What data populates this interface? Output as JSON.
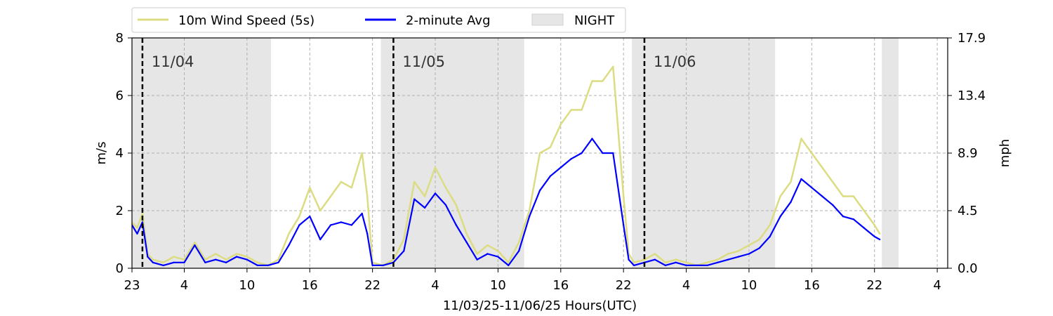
{
  "chart_data": {
    "type": "line",
    "xlabel": "11/03/25-11/06/25  Hours(UTC)",
    "ylabel_left": "m/s",
    "ylabel_right": "mph",
    "x_range_hours": [
      0,
      78
    ],
    "x_ticks": [
      {
        "h": 0,
        "label": "23"
      },
      {
        "h": 5,
        "label": "4"
      },
      {
        "h": 11,
        "label": "10"
      },
      {
        "h": 17,
        "label": "16"
      },
      {
        "h": 23,
        "label": "22"
      },
      {
        "h": 29,
        "label": "4"
      },
      {
        "h": 35,
        "label": "10"
      },
      {
        "h": 41,
        "label": "16"
      },
      {
        "h": 47,
        "label": "22"
      },
      {
        "h": 53,
        "label": "4"
      },
      {
        "h": 59,
        "label": "10"
      },
      {
        "h": 65,
        "label": "16"
      },
      {
        "h": 71,
        "label": "22"
      },
      {
        "h": 77,
        "label": "4"
      }
    ],
    "ylim_left": [
      0,
      8
    ],
    "y_ticks_left": [
      "0",
      "2",
      "4",
      "6",
      "8"
    ],
    "y_ticks_right": [
      "0.0",
      "4.5",
      "8.9",
      "13.4",
      "17.9"
    ],
    "grid": true,
    "legend_position": "top-left, above plot",
    "legend": [
      {
        "label": "10m Wind Speed (5s)",
        "color": "#dcdc82"
      },
      {
        "label": "2-minute Avg",
        "color": "#0000ff"
      },
      {
        "label": "NIGHT",
        "color": "#e6e6e6"
      }
    ],
    "night_periods": [
      [
        0,
        13.3
      ],
      [
        23.8,
        37.5
      ],
      [
        47.8,
        61.5
      ],
      [
        71.7,
        73.3
      ]
    ],
    "day_markers": [
      {
        "h": 1,
        "label": "11/04"
      },
      {
        "h": 25,
        "label": "11/05"
      },
      {
        "h": 49,
        "label": "11/06"
      }
    ],
    "series": [
      {
        "name": "10m Wind Speed (5s)",
        "color": "#dcdc82",
        "x": [
          0,
          0.5,
          1,
          1.5,
          2,
          3,
          4,
          5,
          6,
          7,
          8,
          9,
          10,
          11,
          12,
          13,
          14,
          15,
          16,
          17,
          18,
          19,
          20,
          21,
          22,
          22.5,
          23,
          24,
          25,
          26,
          27,
          28,
          29,
          30,
          31,
          32,
          33,
          34,
          35,
          36,
          37,
          38,
          39,
          40,
          41,
          42,
          43,
          44,
          45,
          46,
          47,
          47.5,
          48,
          49,
          50,
          51,
          52,
          53,
          54,
          55,
          56,
          57,
          58,
          59,
          60,
          61,
          62,
          63,
          64,
          65,
          66,
          67,
          68,
          69,
          70,
          71,
          71.5
        ],
        "values": [
          1.6,
          1.4,
          1.9,
          0.5,
          0.3,
          0.2,
          0.4,
          0.3,
          0.9,
          0.3,
          0.5,
          0.3,
          0.5,
          0.4,
          0.2,
          0.1,
          0.3,
          1.2,
          1.8,
          2.8,
          2.0,
          2.5,
          3.0,
          2.8,
          4.0,
          2.5,
          0.2,
          0.1,
          0.3,
          1.0,
          3.0,
          2.5,
          3.5,
          2.8,
          2.2,
          1.2,
          0.5,
          0.8,
          0.6,
          0.2,
          0.9,
          2.0,
          4.0,
          4.2,
          5.0,
          5.5,
          5.5,
          6.5,
          6.5,
          7.0,
          2.5,
          0.5,
          0.2,
          0.3,
          0.5,
          0.2,
          0.3,
          0.2,
          0.1,
          0.2,
          0.3,
          0.5,
          0.6,
          0.8,
          1.0,
          1.5,
          2.5,
          3.0,
          4.5,
          4.0,
          3.5,
          3.0,
          2.5,
          2.5,
          2.0,
          1.5,
          1.2
        ]
      },
      {
        "name": "2-minute Avg",
        "color": "#0000ff",
        "x": [
          0,
          0.5,
          1,
          1.5,
          2,
          3,
          4,
          5,
          6,
          7,
          8,
          9,
          10,
          11,
          12,
          13,
          14,
          15,
          16,
          17,
          18,
          19,
          20,
          21,
          22,
          22.5,
          23,
          24,
          25,
          26,
          27,
          28,
          29,
          30,
          31,
          32,
          33,
          34,
          35,
          36,
          37,
          38,
          39,
          40,
          41,
          42,
          43,
          44,
          45,
          46,
          47,
          47.5,
          48,
          49,
          50,
          51,
          52,
          53,
          54,
          55,
          56,
          57,
          58,
          59,
          60,
          61,
          62,
          63,
          64,
          65,
          66,
          67,
          68,
          69,
          70,
          71,
          71.5
        ],
        "values": [
          1.5,
          1.2,
          1.6,
          0.4,
          0.2,
          0.1,
          0.2,
          0.2,
          0.8,
          0.2,
          0.3,
          0.2,
          0.4,
          0.3,
          0.1,
          0.1,
          0.2,
          0.8,
          1.5,
          1.8,
          1.0,
          1.5,
          1.6,
          1.5,
          1.9,
          1.2,
          0.1,
          0.1,
          0.2,
          0.6,
          2.4,
          2.1,
          2.6,
          2.2,
          1.5,
          0.9,
          0.3,
          0.5,
          0.4,
          0.1,
          0.6,
          1.8,
          2.7,
          3.2,
          3.5,
          3.8,
          4.0,
          4.5,
          4.0,
          4.0,
          1.5,
          0.3,
          0.1,
          0.2,
          0.3,
          0.1,
          0.2,
          0.1,
          0.1,
          0.1,
          0.2,
          0.3,
          0.4,
          0.5,
          0.7,
          1.1,
          1.8,
          2.3,
          3.1,
          2.8,
          2.5,
          2.2,
          1.8,
          1.7,
          1.4,
          1.1,
          1.0
        ]
      }
    ]
  }
}
